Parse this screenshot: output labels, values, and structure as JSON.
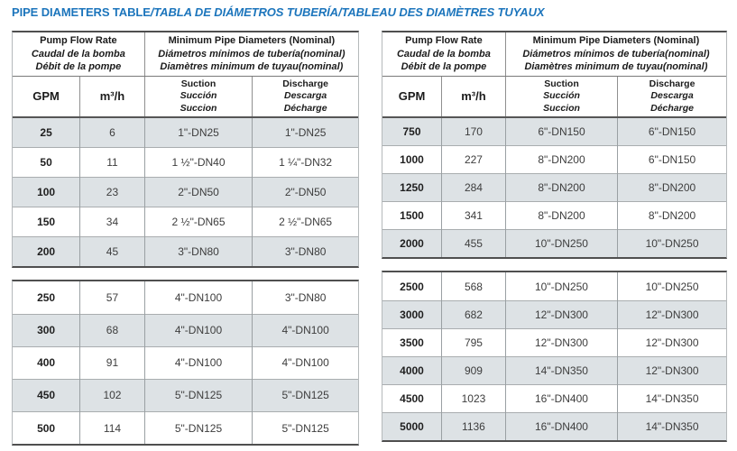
{
  "title": {
    "en": "PIPE DIAMETERS TABLE",
    "intl": "/TABLA DE DIÁMETROS TUBERÍA/TABLEAU DES DIAMÈTRES TUYAUX"
  },
  "header": {
    "flow_en": "Pump Flow Rate",
    "flow_es": "Caudal de la bomba",
    "flow_fr": "Débit de la pompe",
    "dia_en": "Minimum Pipe Diameters (Nominal)",
    "dia_es": "Diámetros mínimos de tubería(nominal)",
    "dia_fr": "Diamètres minimum de tuyau(nominal)",
    "gpm": "GPM",
    "m3h": "m³/h",
    "suction_en": "Suction",
    "suction_es": "Succión",
    "suction_fr": "Succion",
    "discharge_en": "Discharge",
    "discharge_es": "Descarga",
    "discharge_fr": "Décharge"
  },
  "tables": {
    "left": {
      "section1": [
        [
          "25",
          "6",
          "1\"-DN25",
          "1\"-DN25"
        ],
        [
          "50",
          "11",
          "1 ½\"-DN40",
          "1 ¼\"-DN32"
        ],
        [
          "100",
          "23",
          "2\"-DN50",
          "2\"-DN50"
        ],
        [
          "150",
          "34",
          "2 ½\"-DN65",
          "2 ½\"-DN65"
        ],
        [
          "200",
          "45",
          "3\"-DN80",
          "3\"-DN80"
        ]
      ],
      "section2": [
        [
          "250",
          "57",
          "4\"-DN100",
          "3\"-DN80"
        ],
        [
          "300",
          "68",
          "4\"-DN100",
          "4\"-DN100"
        ],
        [
          "400",
          "91",
          "4\"-DN100",
          "4\"-DN100"
        ],
        [
          "450",
          "102",
          "5\"-DN125",
          "5\"-DN125"
        ],
        [
          "500",
          "114",
          "5\"-DN125",
          "5\"-DN125"
        ]
      ]
    },
    "right": {
      "section1": [
        [
          "750",
          "170",
          "6\"-DN150",
          "6\"-DN150"
        ],
        [
          "1000",
          "227",
          "8\"-DN200",
          "6\"-DN150"
        ],
        [
          "1250",
          "284",
          "8\"-DN200",
          "8\"-DN200"
        ],
        [
          "1500",
          "341",
          "8\"-DN200",
          "8\"-DN200"
        ],
        [
          "2000",
          "455",
          "10\"-DN250",
          "10\"-DN250"
        ]
      ],
      "section2": [
        [
          "2500",
          "568",
          "10\"-DN250",
          "10\"-DN250"
        ],
        [
          "3000",
          "682",
          "12\"-DN300",
          "12\"-DN300"
        ],
        [
          "3500",
          "795",
          "12\"-DN300",
          "12\"-DN300"
        ],
        [
          "4000",
          "909",
          "14\"-DN350",
          "12\"-DN300"
        ],
        [
          "4500",
          "1023",
          "16\"-DN400",
          "14\"-DN350"
        ],
        [
          "5000",
          "1136",
          "16\"-DN400",
          "14\"-DN350"
        ]
      ]
    }
  },
  "colors": {
    "title_blue": "#1c75bc",
    "row_shade": "#dde2e5"
  }
}
